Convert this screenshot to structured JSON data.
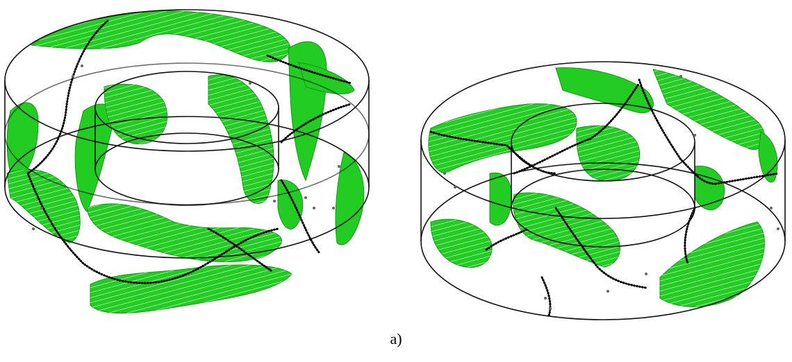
{
  "figure": {
    "caption": "a)",
    "colors": {
      "surface": "#22cc22",
      "wireframe": "#111111",
      "particles": "#000000",
      "background": "#ffffff"
    },
    "panels": [
      "tall-annulus",
      "short-annulus"
    ]
  }
}
